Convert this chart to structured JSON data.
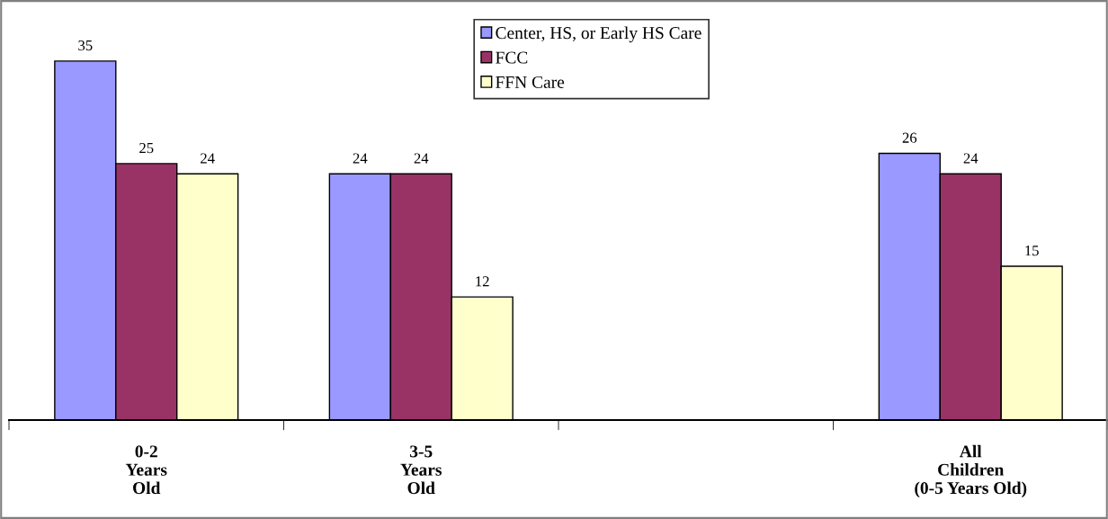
{
  "chart_data": {
    "type": "bar",
    "categories": [
      "0-2\nYears\nOld",
      "3-5\nYears\nOld",
      null,
      "All\nChildren\n(0-5 Years Old)"
    ],
    "series": [
      {
        "name": "Center, HS, or Early HS Care",
        "color": "#9999ff",
        "values": [
          35,
          24,
          null,
          26
        ]
      },
      {
        "name": "FCC",
        "color": "#993366",
        "values": [
          25,
          24,
          null,
          24
        ]
      },
      {
        "name": "FFN Care",
        "color": "#ffffcc",
        "values": [
          24,
          12,
          null,
          15
        ]
      }
    ],
    "data_labels": true,
    "legend": "top",
    "grid": false
  }
}
